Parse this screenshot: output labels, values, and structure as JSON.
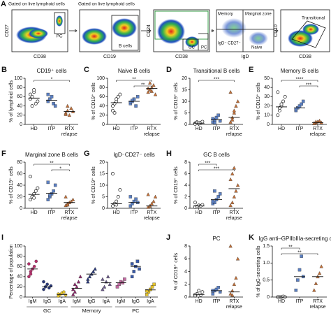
{
  "flow_panel": {
    "label": "A",
    "gating": [
      "Gated on live lymphoid cells",
      "Gated on live lymphoid cells"
    ],
    "plots": [
      {
        "x_label": "CD38",
        "y_label": "CD27",
        "gates": [
          "PC"
        ]
      },
      {
        "x_label": "CD19",
        "y_label": "",
        "gates": [
          "B cells"
        ]
      },
      {
        "x_label": "CD38",
        "y_label": "CD24",
        "gates": [
          "GC",
          "PC"
        ]
      },
      {
        "x_label": "IgD",
        "y_label": "",
        "gates": [
          "Memory",
          "Marginal zone",
          "IgD⁻ CD27⁻",
          "Naive"
        ]
      },
      {
        "x_label": "CD38",
        "y_label": "CD10",
        "gates": [
          "Transitional"
        ]
      }
    ]
  },
  "chart_data": [
    {
      "type": "dot",
      "label": "B",
      "title": "CD19⁺ cells",
      "ylabel": "% of lymphoid cells",
      "ylim": [
        0,
        100
      ],
      "yticks": [
        0,
        20,
        40,
        60,
        80,
        100
      ],
      "series": [
        {
          "name": "HD",
          "color": "#222222",
          "marker": "open-circle",
          "values": [
            55,
            60,
            70,
            45,
            50,
            65,
            40,
            75
          ],
          "median": 57
        },
        {
          "name": "ITP",
          "color": "#5b7fc1",
          "marker": "square",
          "values": [
            50,
            55,
            60,
            45,
            40,
            65
          ],
          "median": 52
        },
        {
          "name": "RTX relapse",
          "color": "#c0703a",
          "marker": "triangle",
          "values": [
            25,
            30,
            20,
            35,
            28,
            22,
            40
          ],
          "median": 28
        }
      ],
      "brackets": [
        {
          "from": 0,
          "to": 2,
          "label": "*"
        }
      ]
    },
    {
      "type": "dot",
      "label": "C",
      "title": "Naive B cells",
      "ylabel": "% of CD19⁺ cells",
      "ylim": [
        0,
        100
      ],
      "yticks": [
        0,
        20,
        40,
        60,
        80,
        100
      ],
      "series": [
        {
          "name": "HD",
          "color": "#222222",
          "marker": "open-circle",
          "values": [
            30,
            45,
            50,
            60,
            65,
            40,
            25,
            55
          ],
          "median": 47
        },
        {
          "name": "ITP",
          "color": "#5b7fc1",
          "marker": "square",
          "values": [
            45,
            50,
            55,
            40,
            60,
            48,
            52
          ],
          "median": 50
        },
        {
          "name": "RTX relapse",
          "color": "#c0703a",
          "marker": "triangle",
          "values": [
            70,
            75,
            80,
            85,
            65,
            78,
            90,
            72
          ],
          "median": 78
        }
      ],
      "brackets": [
        {
          "from": 0,
          "to": 2,
          "label": "**"
        },
        {
          "from": 1,
          "to": 2,
          "label": "**"
        }
      ]
    },
    {
      "type": "dot",
      "label": "D",
      "title": "Transitional B cells",
      "ylabel": "% of CD19⁺ cells",
      "ylim": [
        0,
        20
      ],
      "yticks": [
        0,
        5,
        10,
        15,
        20
      ],
      "series": [
        {
          "name": "HD",
          "color": "#222222",
          "marker": "open-circle",
          "values": [
            0.5,
            1,
            0.3,
            0.8,
            1.2,
            0.2,
            0.6,
            0.4
          ],
          "median": 0.5
        },
        {
          "name": "ITP",
          "color": "#5b7fc1",
          "marker": "square",
          "values": [
            1,
            2,
            3,
            4,
            1.5,
            2.5,
            0.8
          ],
          "median": 2
        },
        {
          "name": "RTX relapse",
          "color": "#c0703a",
          "marker": "triangle",
          "values": [
            1,
            3,
            5,
            8,
            10,
            14,
            2,
            6
          ],
          "median": 3
        }
      ],
      "brackets": [
        {
          "from": 0,
          "to": 2,
          "label": "***"
        }
      ]
    },
    {
      "type": "dot",
      "label": "E",
      "title": "Memory B cells",
      "ylabel": "% of CD19⁺ cells",
      "ylim": [
        0,
        50
      ],
      "yticks": [
        0,
        10,
        20,
        30,
        40,
        50
      ],
      "series": [
        {
          "name": "HD",
          "color": "#222222",
          "marker": "open-circle",
          "values": [
            10,
            15,
            20,
            25,
            30,
            35,
            18,
            22
          ],
          "median": 19
        },
        {
          "name": "ITP",
          "color": "#5b7fc1",
          "marker": "square",
          "values": [
            15,
            18,
            20,
            22,
            25,
            16
          ],
          "median": 18
        },
        {
          "name": "RTX relapse",
          "color": "#c0703a",
          "marker": "triangle",
          "values": [
            1,
            2,
            3,
            4,
            2,
            1.5,
            3
          ],
          "median": 2
        }
      ],
      "brackets": [
        {
          "from": 0,
          "to": 2,
          "label": "****"
        },
        {
          "from": 1,
          "to": 2,
          "label": "***"
        }
      ]
    },
    {
      "type": "dot",
      "label": "F",
      "title": "Marginal zone B cells",
      "ylabel": "% of CD19⁺ cells",
      "ylim": [
        0,
        80
      ],
      "yticks": [
        0,
        20,
        40,
        60,
        80
      ],
      "series": [
        {
          "name": "HD",
          "color": "#222222",
          "marker": "open-circle",
          "values": [
            15,
            20,
            25,
            30,
            35,
            55,
            20,
            18
          ],
          "median": 24
        },
        {
          "name": "ITP",
          "color": "#5b7fc1",
          "marker": "square",
          "values": [
            15,
            20,
            25,
            30,
            40,
            45,
            22
          ],
          "median": 26
        },
        {
          "name": "RTX relapse",
          "color": "#c0703a",
          "marker": "triangle",
          "values": [
            5,
            8,
            10,
            12,
            15,
            20,
            6
          ],
          "median": 10
        }
      ],
      "brackets": [
        {
          "from": 0,
          "to": 2,
          "label": "**"
        },
        {
          "from": 1,
          "to": 2,
          "label": "*"
        }
      ]
    },
    {
      "type": "dot",
      "label": "G",
      "title": "IgD⁻CD27⁻ cells",
      "ylabel": "% of CD19⁺ cells",
      "ylim": [
        0,
        20
      ],
      "yticks": [
        0,
        5,
        10,
        15,
        20
      ],
      "series": [
        {
          "name": "HD",
          "color": "#222222",
          "marker": "open-circle",
          "values": [
            1,
            2,
            3,
            5,
            8,
            15,
            2,
            1.5
          ],
          "median": 2
        },
        {
          "name": "ITP",
          "color": "#5b7fc1",
          "marker": "square",
          "values": [
            1,
            2,
            3,
            4,
            2.5,
            5
          ],
          "median": 2.5
        },
        {
          "name": "RTX relapse",
          "color": "#c0703a",
          "marker": "triangle",
          "values": [
            0.5,
            1,
            2,
            3,
            5,
            6,
            1
          ],
          "median": 1
        }
      ],
      "brackets": []
    },
    {
      "type": "dot",
      "label": "H",
      "title": "GC B cells",
      "ylabel": "% of CD19⁺ cells",
      "ylim": [
        0,
        8
      ],
      "yticks": [
        0,
        2,
        4,
        6,
        8
      ],
      "series": [
        {
          "name": "HD",
          "color": "#222222",
          "marker": "open-circle",
          "values": [
            0.2,
            0.3,
            0.5,
            0.4,
            0.6,
            1,
            0.3
          ],
          "median": 0.4
        },
        {
          "name": "ITP",
          "color": "#5b7fc1",
          "marker": "square",
          "values": [
            0.8,
            1,
            1.5,
            2,
            2.5,
            1.2,
            3
          ],
          "median": 1.5
        },
        {
          "name": "RTX relapse",
          "color": "#c0703a",
          "marker": "triangle",
          "values": [
            0.5,
            1,
            2,
            3,
            4,
            5,
            6,
            7
          ],
          "median": 3.4
        }
      ],
      "brackets": [
        {
          "from": 0,
          "to": 1,
          "label": "***"
        },
        {
          "from": 0,
          "to": 2,
          "label": "***"
        }
      ]
    },
    {
      "type": "dot",
      "label": "I",
      "title": "",
      "ylabel": "Percentage of population",
      "ylim": [
        0,
        100
      ],
      "yticks": [
        0,
        20,
        40,
        60,
        80,
        100
      ],
      "groups": [
        {
          "name": "GC",
          "from": 0,
          "to": 2
        },
        {
          "name": "Memory",
          "from": 3,
          "to": 5
        },
        {
          "name": "PC",
          "from": 6,
          "to": 8
        }
      ],
      "series": [
        {
          "name": "IgM",
          "color": "#b5306b",
          "marker": "circle",
          "values": [
            40,
            50,
            55,
            60,
            70,
            65,
            45
          ],
          "median": 55
        },
        {
          "name": "IgG",
          "color": "#2b3a7a",
          "marker": "circle",
          "values": [
            15,
            20,
            25,
            18,
            22,
            30
          ],
          "median": 20
        },
        {
          "name": "IgA",
          "color": "#e3c22b",
          "marker": "circle",
          "values": [
            2,
            5,
            8,
            10,
            4,
            6
          ],
          "median": 5
        },
        {
          "name": "IgM",
          "color": "#8a2a6a",
          "marker": "triangle",
          "values": [
            5,
            10,
            20,
            30,
            40,
            15,
            25
          ],
          "median": 17
        },
        {
          "name": "IgG",
          "color": "#2b3a7a",
          "marker": "triangle",
          "values": [
            30,
            40,
            45,
            50,
            55,
            35
          ],
          "median": 45
        },
        {
          "name": "IgA",
          "color": "#6b5a8a",
          "marker": "triangle",
          "values": [
            15,
            20,
            30,
            40,
            25,
            35
          ],
          "median": 28
        },
        {
          "name": "IgM",
          "color": "#c06aa0",
          "marker": "square",
          "values": [
            20,
            25,
            30,
            28,
            35
          ],
          "median": 28
        },
        {
          "name": "IgG",
          "color": "#3a5aa8",
          "marker": "square",
          "values": [
            40,
            50,
            60,
            70,
            55,
            65
          ],
          "median": 60
        },
        {
          "name": "IgA",
          "color": "#e3c22b",
          "marker": "square",
          "values": [
            5,
            10,
            15,
            20,
            25,
            12
          ],
          "median": 14
        }
      ],
      "brackets": []
    },
    {
      "type": "dot",
      "label": "J",
      "title": "PC",
      "ylabel": "% of CD19⁺ cells",
      "ylim": [
        0,
        8
      ],
      "yticks": [
        0,
        2,
        4,
        6,
        8
      ],
      "series": [
        {
          "name": "HD",
          "color": "#222222",
          "marker": "open-circle",
          "values": [
            0.2,
            0.5,
            1,
            0.3,
            0.8,
            0.4
          ],
          "median": 0.4
        },
        {
          "name": "ITP",
          "color": "#5b7fc1",
          "marker": "square",
          "values": [
            0.5,
            1,
            1.2,
            1.5,
            0.8,
            1
          ],
          "median": 1
        },
        {
          "name": "RTX relapse",
          "color": "#c0703a",
          "marker": "triangle",
          "values": [
            0.5,
            1,
            2,
            3,
            6,
            8,
            0.3
          ],
          "median": 0.8
        }
      ],
      "brackets": []
    },
    {
      "type": "dot",
      "label": "K",
      "title": "IgG anti–GPIIbIIIa-secreting cells",
      "ylabel": "% of IgG-secreting cells",
      "ylim": [
        0,
        1.5
      ],
      "yticks": [
        0,
        0.5,
        {
          "value": 1,
          "label": "1.0"
        },
        1.5
      ],
      "series": [
        {
          "name": "HD",
          "color": "#222222",
          "marker": "open-circle",
          "values": [
            0,
            0,
            0,
            0.02,
            0,
            0
          ],
          "median": 0
        },
        {
          "name": "ITP",
          "color": "#5b7fc1",
          "marker": "square",
          "values": [
            0.2,
            0.5,
            0.8,
            1.2,
            0.6
          ],
          "median": 0.6
        },
        {
          "name": "RTX relapse",
          "color": "#c0703a",
          "marker": "triangle",
          "values": [
            0.2,
            0.4,
            0.6,
            0.7,
            0.9
          ],
          "median": 0.6
        }
      ],
      "brackets": [
        {
          "from": 0,
          "to": 1,
          "label": "**"
        },
        {
          "from": 0,
          "to": 2,
          "label": "**"
        }
      ]
    }
  ]
}
